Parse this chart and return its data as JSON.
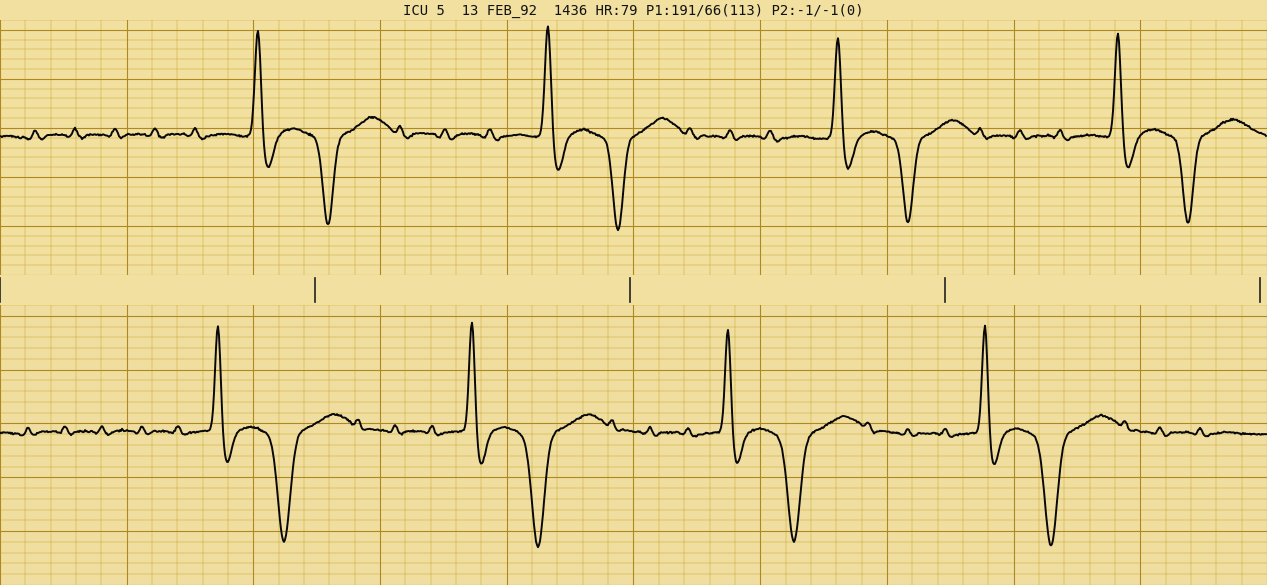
{
  "title": "ICU 5  13 FEB_92  1436 HR:79 P1:191/66(113) P2:-1/-1(0)",
  "bg_paper": "#f2e0a0",
  "bg_paper2": "#f0dea0",
  "grid_minor": "#c8a830",
  "grid_major": "#b08820",
  "ecg_color": "#080808",
  "sep_color": "#f8f5ee",
  "title_color": "#111111",
  "lw": 1.4,
  "title_fontsize": 10,
  "fig_w": 12.67,
  "fig_h": 5.85,
  "dpi": 100
}
